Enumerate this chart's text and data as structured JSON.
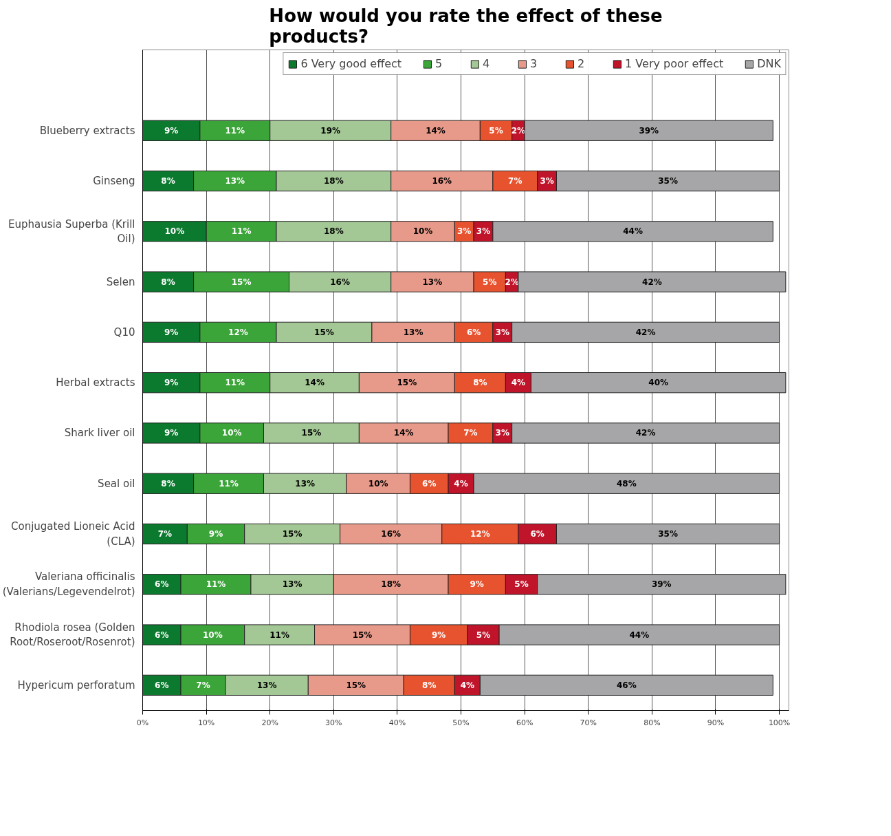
{
  "chart_data": {
    "type": "bar",
    "orientation": "horizontal",
    "stacked": true,
    "title": "How would you rate the effect of these products?",
    "categories": [
      "Blueberry extracts",
      "Ginseng",
      "Euphausia Superba (Krill Oil)",
      "Selen",
      "Q10",
      "Herbal extracts",
      "Shark liver oil",
      "Seal oil",
      "Conjugated Lioneic Acid (CLA)",
      "Valeriana officinalis (Valerians/Legevendelrot)",
      "Rhodiola rosea (Golden Root/Roseroot/Rosenrot)",
      "Hypericum perforatum"
    ],
    "series": [
      {
        "name": "6 Very good effect",
        "color": "#0b7a2e",
        "values": [
          9,
          8,
          10,
          8,
          9,
          9,
          9,
          8,
          7,
          6,
          6,
          6
        ],
        "value_labels": [
          "9%",
          "8%",
          "10%",
          "8%",
          "9%",
          "9%",
          "9%",
          "8%",
          "7%",
          "6%",
          "6%",
          "6%"
        ]
      },
      {
        "name": "5",
        "color": "#3ca53a",
        "values": [
          11,
          13,
          11,
          15,
          12,
          11,
          10,
          11,
          9,
          11,
          10,
          7
        ],
        "value_labels": [
          "11%",
          "13%",
          "11%",
          "15%",
          "12%",
          "11%",
          "10%",
          "11%",
          "9%",
          "11%",
          "10%",
          "7%"
        ]
      },
      {
        "name": "4",
        "color": "#a3c795",
        "values": [
          19,
          18,
          18,
          16,
          15,
          14,
          15,
          13,
          15,
          13,
          11,
          13
        ],
        "value_labels": [
          "19%",
          "18%",
          "18%",
          "16%",
          "15%",
          "14%",
          "15%",
          "13%",
          "15%",
          "13%",
          "11%",
          "13%"
        ]
      },
      {
        "name": "3",
        "color": "#e89a8a",
        "values": [
          14,
          16,
          10,
          13,
          13,
          15,
          14,
          10,
          16,
          18,
          15,
          15
        ],
        "value_labels": [
          "14%",
          "16%",
          "10%",
          "13%",
          "13%",
          "15%",
          "14%",
          "10%",
          "16%",
          "18%",
          "15%",
          "15%"
        ]
      },
      {
        "name": "2",
        "color": "#e8532f",
        "values": [
          5,
          7,
          3,
          5,
          6,
          8,
          7,
          6,
          12,
          9,
          9,
          8
        ],
        "value_labels": [
          "5%",
          "7%",
          "3%",
          "5%",
          "6%",
          "8%",
          "7%",
          "6%",
          "12%",
          "9%",
          "9%",
          "8%"
        ]
      },
      {
        "name": "1 Very poor effect",
        "color": "#c0142a",
        "values": [
          2,
          3,
          3,
          2,
          3,
          4,
          3,
          4,
          6,
          5,
          5,
          4
        ],
        "value_labels": [
          "2%",
          "3%",
          "3%",
          "2%",
          "3%",
          "4%",
          "3%",
          "4%",
          "6%",
          "5%",
          "5%",
          "4%"
        ]
      },
      {
        "name": "DNK",
        "color": "#a6a6a8",
        "values": [
          39,
          35,
          44,
          42,
          42,
          40,
          42,
          48,
          35,
          39,
          44,
          46
        ],
        "value_labels": [
          "39%",
          "35%",
          "44%",
          "42%",
          "42%",
          "40%",
          "42%",
          "48%",
          "35%",
          "39%",
          "44%",
          "46%"
        ]
      }
    ],
    "xlim": [
      0,
      101.5
    ],
    "xticks": [
      {
        "value": 0,
        "label": "0%"
      },
      {
        "value": 10,
        "label": "10%"
      },
      {
        "value": 20,
        "label": "20%"
      },
      {
        "value": 30,
        "label": "30%"
      },
      {
        "value": 40,
        "label": "40%"
      },
      {
        "value": 50,
        "label": "50%"
      },
      {
        "value": 60,
        "label": "60%"
      },
      {
        "value": 70,
        "label": "70%"
      },
      {
        "value": 80,
        "label": "80%"
      },
      {
        "value": 90,
        "label": "90%"
      },
      {
        "value": 100,
        "label": "100%"
      }
    ],
    "grid": "x",
    "legend": "top"
  }
}
